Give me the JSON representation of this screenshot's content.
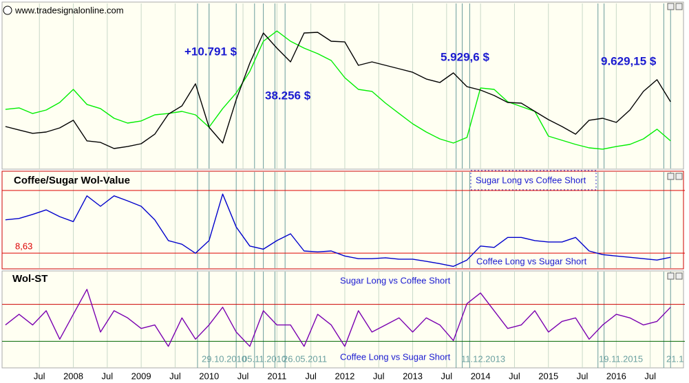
{
  "chart_data": [
    {
      "type": "line",
      "title": "www.tradesignalonline.com",
      "annotations": [
        "+10.791 $",
        "38.256 $",
        "5.929,6 $",
        "9.629,15 $"
      ],
      "xlim": [
        2006.95,
        2016.97
      ],
      "ylim": [
        0,
        100
      ],
      "x": [
        2007.0,
        2007.2,
        2007.4,
        2007.6,
        2007.8,
        2008.0,
        2008.2,
        2008.4,
        2008.6,
        2008.8,
        2009.0,
        2009.2,
        2009.4,
        2009.6,
        2009.8,
        2010.0,
        2010.2,
        2010.4,
        2010.6,
        2010.8,
        2011.0,
        2011.2,
        2011.4,
        2011.6,
        2011.8,
        2012.0,
        2012.2,
        2012.4,
        2012.6,
        2012.8,
        2013.0,
        2013.2,
        2013.4,
        2013.6,
        2013.8,
        2014.0,
        2014.2,
        2014.4,
        2014.6,
        2014.8,
        2015.0,
        2015.2,
        2015.4,
        2015.6,
        2015.8,
        2016.0,
        2016.2,
        2016.4,
        2016.6,
        2016.8
      ],
      "series": [
        {
          "color": "#00ee00",
          "values": [
            35.8,
            36.7,
            33.3,
            35.4,
            40.0,
            47.9,
            38.8,
            36.3,
            30.4,
            27.5,
            28.8,
            32.5,
            33.3,
            34.6,
            32.5,
            25.0,
            36.3,
            45.8,
            58.8,
            77.1,
            83.3,
            77.1,
            72.9,
            69.6,
            65.4,
            55.0,
            47.9,
            46.7,
            39.6,
            33.3,
            27.1,
            22.1,
            17.9,
            15.4,
            18.8,
            48.8,
            47.9,
            40.4,
            37.5,
            34.6,
            19.6,
            17.1,
            14.6,
            12.5,
            11.7,
            13.3,
            14.6,
            17.9,
            23.8,
            16.7
          ]
        },
        {
          "color": "#000000",
          "values": [
            25.4,
            23.3,
            21.3,
            22.1,
            24.6,
            29.2,
            16.7,
            15.8,
            12.1,
            13.3,
            15.0,
            20.8,
            32.9,
            37.9,
            51.3,
            25.0,
            15.4,
            41.7,
            63.8,
            82.1,
            72.9,
            64.6,
            82.1,
            82.5,
            77.1,
            76.7,
            62.5,
            64.6,
            62.5,
            60.4,
            58.3,
            54.2,
            52.1,
            57.9,
            49.6,
            47.5,
            44.2,
            40.0,
            39.6,
            34.6,
            29.6,
            25.4,
            20.8,
            29.2,
            30.4,
            27.9,
            35.4,
            46.7,
            53.8,
            40.4
          ]
        }
      ]
    },
    {
      "type": "line",
      "title": "Coffee/Sugar Wol-Value",
      "annotations": [
        "Sugar Long vs Coffee Short",
        "Coffee Long vs Sugar Short"
      ],
      "xlim": [
        2006.95,
        2016.97
      ],
      "ylim": [
        5.3,
        26.6
      ],
      "levels": [
        {
          "value": 22.5,
          "color": "#dd0000"
        },
        {
          "value": 8.63,
          "label": "8,63",
          "color": "#dd0000"
        }
      ],
      "x": [
        2007.0,
        2007.2,
        2007.4,
        2007.6,
        2007.8,
        2008.0,
        2008.2,
        2008.4,
        2008.6,
        2008.8,
        2009.0,
        2009.2,
        2009.4,
        2009.6,
        2009.8,
        2010.0,
        2010.2,
        2010.4,
        2010.6,
        2010.8,
        2011.0,
        2011.2,
        2011.4,
        2011.6,
        2011.8,
        2012.0,
        2012.2,
        2012.4,
        2012.6,
        2012.8,
        2013.0,
        2013.2,
        2013.4,
        2013.6,
        2013.8,
        2014.0,
        2014.2,
        2014.4,
        2014.6,
        2014.8,
        2015.0,
        2015.2,
        2015.4,
        2015.6,
        2015.8,
        2016.0,
        2016.2,
        2016.4,
        2016.6,
        2016.8
      ],
      "series": [
        {
          "color": "#0000cc",
          "values": [
            16.0,
            16.3,
            17.2,
            18.2,
            16.7,
            15.6,
            21.3,
            19.0,
            21.3,
            20.2,
            19.0,
            16.0,
            11.4,
            10.6,
            8.6,
            11.4,
            21.7,
            14.4,
            10.2,
            9.5,
            11.4,
            12.9,
            9.1,
            8.9,
            9.1,
            8.0,
            7.4,
            7.4,
            7.6,
            7.3,
            7.3,
            6.8,
            6.3,
            5.7,
            7.1,
            10.2,
            9.9,
            12.1,
            12.1,
            11.4,
            11.1,
            11.1,
            12.1,
            9.1,
            8.3,
            8.0,
            7.7,
            7.4,
            7.1,
            7.7
          ]
        }
      ]
    },
    {
      "type": "line",
      "title": "Wol-ST",
      "annotations": [
        "Sugar Long vs Coffee Short",
        "Coffee Long vs Sugar Short"
      ],
      "signal_labels": [
        "29.10.2010",
        "05.11.2010",
        "26.05.2011",
        "11.12.2013",
        "19.11.2015",
        "21.1"
      ],
      "signals": [
        2009.83,
        2010.0,
        2010.4,
        2010.67,
        2010.8,
        2010.97,
        2011.12,
        2013.64,
        2013.73,
        2013.84,
        2015.73,
        2015.82,
        2016.7,
        2016.8
      ],
      "xlim": [
        2006.95,
        2016.97
      ],
      "ylim": [
        -23,
        133
      ],
      "grid": true,
      "xticks": [
        {
          "value": 2007.5,
          "label": "Jul"
        },
        2008,
        {
          "value": 2008.5,
          "label": "Jul"
        },
        2009,
        {
          "value": 2009.5,
          "label": "Jul"
        },
        2010,
        {
          "value": 2010.5,
          "label": "Jul"
        },
        2011,
        {
          "value": 2011.5,
          "label": "Jul"
        },
        2012,
        {
          "value": 2012.5,
          "label": "Jul"
        },
        2013,
        {
          "value": 2013.5,
          "label": "Jul"
        },
        2014,
        {
          "value": 2014.5,
          "label": "Jul"
        },
        2015,
        {
          "value": 2015.5,
          "label": "Jul"
        },
        2016,
        {
          "value": 2016.5,
          "label": "Jul"
        }
      ],
      "levels": [
        {
          "value": 80,
          "color": "#cc0000"
        },
        {
          "value": 20,
          "color": "#006600"
        }
      ],
      "x": [
        2007.0,
        2007.2,
        2007.4,
        2007.6,
        2007.8,
        2008.0,
        2008.2,
        2008.4,
        2008.6,
        2008.8,
        2009.0,
        2009.2,
        2009.4,
        2009.6,
        2009.8,
        2010.0,
        2010.2,
        2010.4,
        2010.6,
        2010.8,
        2011.0,
        2011.2,
        2011.4,
        2011.6,
        2011.8,
        2012.0,
        2012.2,
        2012.4,
        2012.6,
        2012.8,
        2013.0,
        2013.2,
        2013.4,
        2013.6,
        2013.8,
        2014.0,
        2014.2,
        2014.4,
        2014.6,
        2014.8,
        2015.0,
        2015.2,
        2015.4,
        2015.6,
        2015.8,
        2016.0,
        2016.2,
        2016.4,
        2016.6,
        2016.8
      ],
      "series": [
        {
          "color": "#7a00b0",
          "values": [
            46.5,
            63.8,
            46.5,
            69.6,
            23.5,
            63.8,
            104.2,
            35.0,
            69.6,
            58.0,
            40.8,
            46.5,
            11.9,
            58.0,
            23.5,
            46.5,
            75.3,
            35.0,
            11.9,
            69.6,
            46.5,
            46.5,
            11.9,
            63.8,
            46.5,
            11.9,
            69.6,
            35.0,
            46.5,
            58.0,
            35.0,
            58.0,
            46.5,
            21.2,
            81.1,
            98.4,
            69.6,
            40.8,
            46.5,
            69.6,
            35.0,
            52.3,
            58.0,
            23.5,
            46.5,
            63.8,
            58.0,
            46.5,
            52.3,
            75.3
          ]
        }
      ]
    }
  ]
}
